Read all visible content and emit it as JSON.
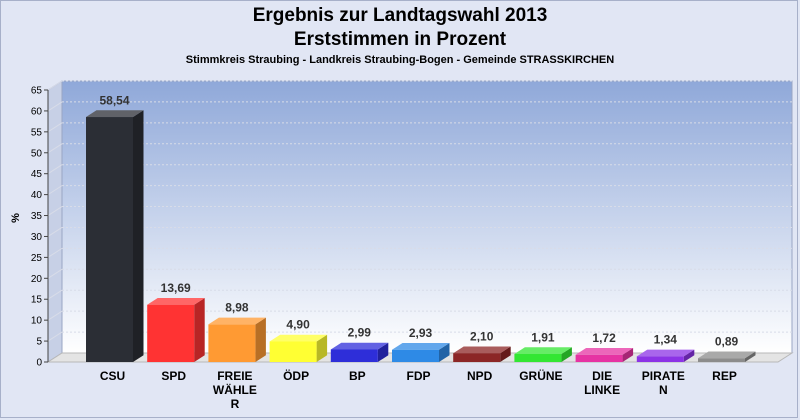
{
  "chart_data": {
    "type": "bar",
    "title": "Ergebnis zur Landtagswahl 2013",
    "subtitle": "Erststimmen in Prozent",
    "caption": "Stimmkreis Straubing - Landkreis Straubing-Bogen - Gemeinde STRASSKIRCHEN",
    "ylabel": "%",
    "xlabel": "",
    "ylim": [
      0,
      65
    ],
    "yticks": [
      0,
      5,
      10,
      15,
      20,
      25,
      30,
      35,
      40,
      45,
      50,
      55,
      60,
      65
    ],
    "grid": true,
    "categories": [
      "CSU",
      "SPD",
      "FREIE WÄHLER",
      "ÖDP",
      "BP",
      "FDP",
      "NPD",
      "GRÜNE",
      "DIE LINKE",
      "PIRATEN",
      "REP"
    ],
    "category_labels": [
      [
        "CSU"
      ],
      [
        "SPD"
      ],
      [
        "FREIE",
        "WÄHLE",
        "R"
      ],
      [
        "ÖDP"
      ],
      [
        "BP"
      ],
      [
        "FDP"
      ],
      [
        "NPD"
      ],
      [
        "GRÜNE"
      ],
      [
        "DIE",
        "LINKE"
      ],
      [
        "PIRATE",
        "N"
      ],
      [
        "REP"
      ]
    ],
    "values": [
      58.54,
      13.69,
      8.98,
      4.9,
      2.99,
      2.93,
      2.1,
      1.91,
      1.72,
      1.34,
      0.89
    ],
    "value_labels": [
      "58,54",
      "13,69",
      "8,98",
      "4,90",
      "2,99",
      "2,93",
      "2,10",
      "1,91",
      "1,72",
      "1,34",
      "0,89"
    ],
    "colors": [
      "#2b2e35",
      "#ff3333",
      "#ff9a33",
      "#ffff33",
      "#2e2ed9",
      "#2e8ae6",
      "#8c2626",
      "#33e633",
      "#e633a3",
      "#8c33e6",
      "#8c8c8c"
    ]
  }
}
